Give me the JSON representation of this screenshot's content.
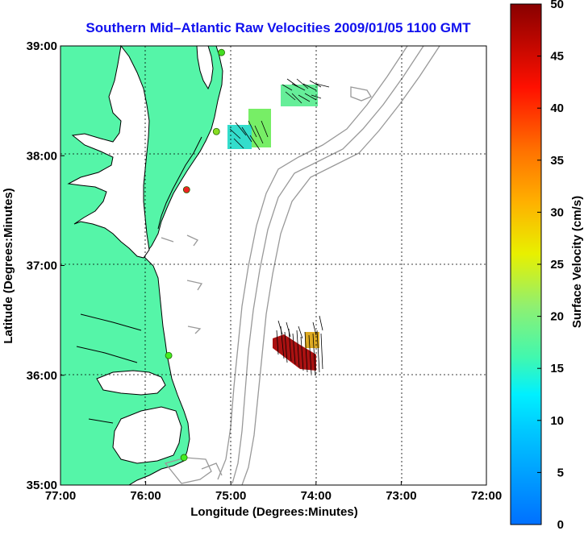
{
  "chart_data": {
    "type": "map",
    "title": "Southern Mid–Atlantic Raw Velocities 2009/01/05 1100 GMT",
    "xlabel": "Longitude (Degrees:Minutes)",
    "ylabel": "Latitude (Degrees:Minutes)",
    "xlim": [
      -77,
      -72
    ],
    "ylim": [
      35,
      39
    ],
    "x_ticks": [
      "77:00",
      "76:00",
      "75:00",
      "74:00",
      "73:00",
      "72:00"
    ],
    "y_ticks": [
      "39:00",
      "38:00",
      "37:00",
      "36:00",
      "35:00"
    ],
    "grid": true,
    "colorbar": {
      "label": "Surface Velocity (cm/s)",
      "range": [
        0,
        50
      ],
      "ticks": [
        "50",
        "45",
        "40",
        "35",
        "30",
        "25",
        "20",
        "15",
        "10",
        "5",
        "0"
      ]
    },
    "stations": [
      {
        "lon": -75.11,
        "lat": 38.94,
        "color": "#44dd22"
      },
      {
        "lon": -75.17,
        "lat": 38.22,
        "color": "#88dd22"
      },
      {
        "lon": -75.52,
        "lat": 37.69,
        "color": "#ee2222"
      },
      {
        "lon": -75.73,
        "lat": 36.18,
        "color": "#44ee22"
      },
      {
        "lon": -75.55,
        "lat": 35.25,
        "color": "#44ee22"
      }
    ],
    "velocity_regions": [
      {
        "lon": [
          -74.42,
          -73.92
        ],
        "lat": [
          38.5,
          38.71
        ],
        "speed_cm_s": 17
      },
      {
        "lon": [
          -74.95,
          -74.7
        ],
        "lat": [
          38.1,
          38.4
        ],
        "speed_cm_s": 19
      },
      {
        "lon": [
          -75.0,
          -74.7
        ],
        "lat": [
          38.03,
          38.32
        ],
        "speed_cm_s": 12
      },
      {
        "lon": [
          -74.55,
          -74.05
        ],
        "lat": [
          36.05,
          36.3
        ],
        "speed_cm_s": 50
      },
      {
        "lon": [
          -74.15,
          -73.95
        ],
        "lat": [
          36.25,
          36.42
        ],
        "speed_cm_s": 28
      }
    ]
  }
}
